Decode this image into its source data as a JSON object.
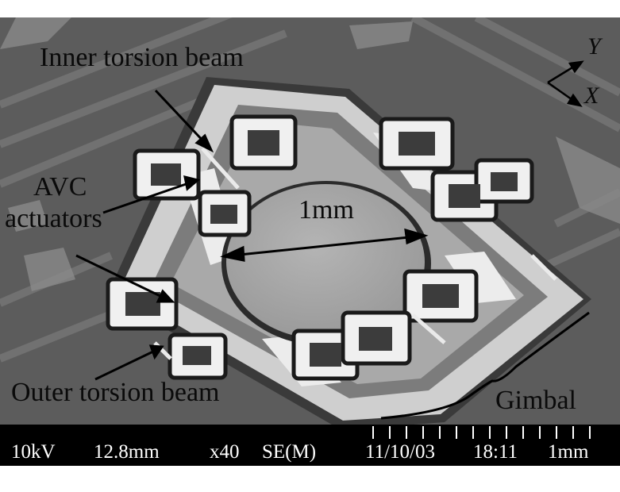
{
  "labels": {
    "inner_beam": "Inner torsion beam",
    "avc_line1": "AVC",
    "avc_line2": "actuators",
    "diameter": "1mm",
    "outer_beam": "Outer torsion beam",
    "gimbal": "Gimbal",
    "axis_y": "Y",
    "axis_x": "X"
  },
  "databar": {
    "voltage": "10kV",
    "working_distance": "12.8mm",
    "magnification": "x40",
    "detector": "SE(M)",
    "date": "11/10/03",
    "time": "18:11",
    "scale": "1mm"
  },
  "colors": {
    "background": "#5e5e5e",
    "frame": "#d8d8d8",
    "mirror": "#a6a6a6",
    "databar": "#000000",
    "text": "#0a0a0a"
  }
}
